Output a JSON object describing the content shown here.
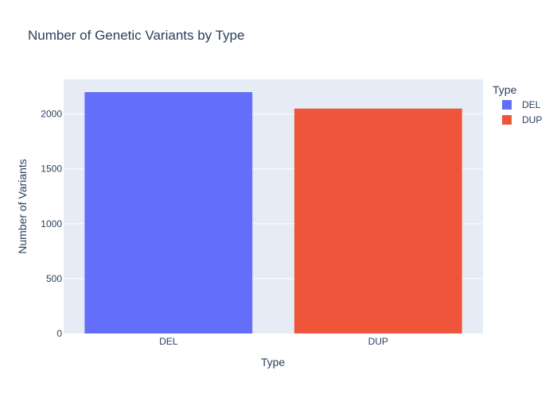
{
  "chart_data": {
    "type": "bar",
    "title": "Number of Genetic Variants by Type",
    "xlabel": "Type",
    "ylabel": "Number of Variants",
    "categories": [
      "DEL",
      "DUP"
    ],
    "series": [
      {
        "name": "DEL",
        "category": "DEL",
        "value": 2200,
        "color": "#636efa"
      },
      {
        "name": "DUP",
        "category": "DUP",
        "value": 2050,
        "color": "#ef553b"
      }
    ],
    "ylim": [
      0,
      2316
    ],
    "yticks": [
      0,
      500,
      1000,
      1500,
      2000
    ],
    "grid": true,
    "legend_title": "Type",
    "legend_position": "top-right",
    "plot_background": "#e5ecf6"
  }
}
